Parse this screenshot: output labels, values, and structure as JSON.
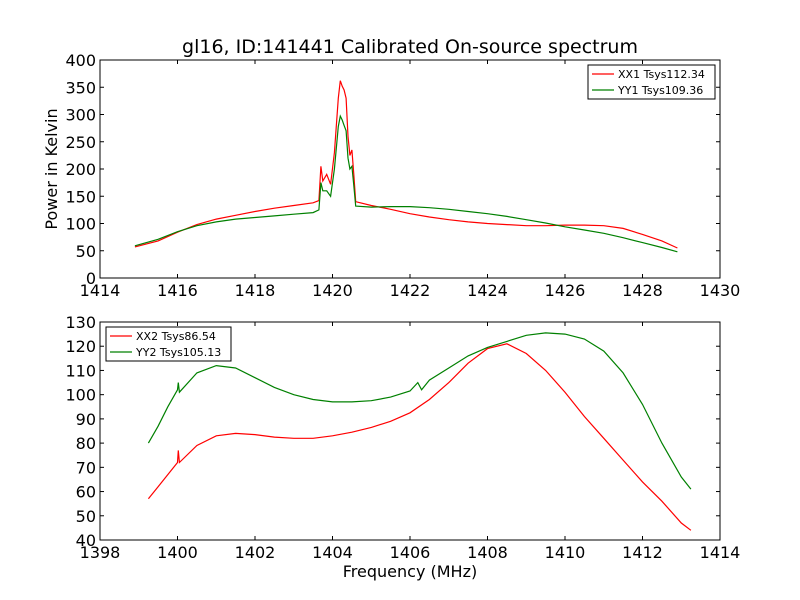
{
  "chart_data": [
    {
      "type": "line",
      "title": "gl16, ID:141441 Calibrated On-source spectrum",
      "xlabel": "",
      "ylabel": "Power in Kelvin",
      "xlim": [
        1414,
        1430
      ],
      "ylim": [
        0,
        400
      ],
      "xticks": [
        1414,
        1416,
        1418,
        1420,
        1422,
        1424,
        1426,
        1428,
        1430
      ],
      "yticks": [
        0,
        50,
        100,
        150,
        200,
        250,
        300,
        350,
        400
      ],
      "legend_position": "top-right",
      "series": [
        {
          "name": "XX1 Tsys112.34",
          "color": "#ff0000",
          "points": [
            [
              1414.9,
              57
            ],
            [
              1415.5,
              68
            ],
            [
              1416,
              84
            ],
            [
              1416.5,
              98
            ],
            [
              1417,
              108
            ],
            [
              1417.5,
              115
            ],
            [
              1418,
              122
            ],
            [
              1418.5,
              128
            ],
            [
              1419,
              133
            ],
            [
              1419.5,
              138
            ],
            [
              1419.65,
              142
            ],
            [
              1419.7,
              205
            ],
            [
              1419.75,
              178
            ],
            [
              1419.85,
              190
            ],
            [
              1419.95,
              172
            ],
            [
              1420.05,
              230
            ],
            [
              1420.15,
              330
            ],
            [
              1420.2,
              362
            ],
            [
              1420.25,
              352
            ],
            [
              1420.3,
              345
            ],
            [
              1420.35,
              330
            ],
            [
              1420.4,
              260
            ],
            [
              1420.45,
              225
            ],
            [
              1420.5,
              235
            ],
            [
              1420.55,
              190
            ],
            [
              1420.6,
              140
            ],
            [
              1421,
              133
            ],
            [
              1421.5,
              126
            ],
            [
              1422,
              118
            ],
            [
              1422.5,
              112
            ],
            [
              1423,
              107
            ],
            [
              1423.5,
              103
            ],
            [
              1424,
              100
            ],
            [
              1424.5,
              98
            ],
            [
              1425,
              96
            ],
            [
              1425.5,
              96
            ],
            [
              1426,
              97
            ],
            [
              1426.5,
              97
            ],
            [
              1427,
              96
            ],
            [
              1427.5,
              91
            ],
            [
              1428,
              80
            ],
            [
              1428.5,
              68
            ],
            [
              1428.9,
              55
            ]
          ]
        },
        {
          "name": "YY1 Tsys109.36",
          "color": "#008000",
          "points": [
            [
              1414.9,
              59
            ],
            [
              1415.5,
              71
            ],
            [
              1416,
              85
            ],
            [
              1416.5,
              96
            ],
            [
              1417,
              103
            ],
            [
              1417.5,
              108
            ],
            [
              1418,
              111
            ],
            [
              1418.5,
              114
            ],
            [
              1419,
              117
            ],
            [
              1419.5,
              120
            ],
            [
              1419.65,
              125
            ],
            [
              1419.7,
              175
            ],
            [
              1419.75,
              160
            ],
            [
              1419.85,
              160
            ],
            [
              1419.95,
              150
            ],
            [
              1420.05,
              200
            ],
            [
              1420.15,
              278
            ],
            [
              1420.2,
              297
            ],
            [
              1420.25,
              290
            ],
            [
              1420.3,
              280
            ],
            [
              1420.35,
              270
            ],
            [
              1420.4,
              220
            ],
            [
              1420.45,
              200
            ],
            [
              1420.5,
              205
            ],
            [
              1420.55,
              170
            ],
            [
              1420.6,
              132
            ],
            [
              1421,
              130
            ],
            [
              1421.5,
              131
            ],
            [
              1422,
              131
            ],
            [
              1422.5,
              129
            ],
            [
              1423,
              126
            ],
            [
              1423.5,
              122
            ],
            [
              1424,
              118
            ],
            [
              1424.5,
              113
            ],
            [
              1425,
              107
            ],
            [
              1425.5,
              101
            ],
            [
              1426,
              94
            ],
            [
              1426.5,
              88
            ],
            [
              1427,
              82
            ],
            [
              1427.5,
              74
            ],
            [
              1428,
              65
            ],
            [
              1428.5,
              56
            ],
            [
              1428.9,
              48
            ]
          ]
        }
      ]
    },
    {
      "type": "line",
      "title": "",
      "xlabel": "Frequency (MHz)",
      "ylabel": "",
      "xlim": [
        1398,
        1414
      ],
      "ylim": [
        40,
        130
      ],
      "xticks": [
        1398,
        1400,
        1402,
        1404,
        1406,
        1408,
        1410,
        1412,
        1414
      ],
      "yticks": [
        40,
        50,
        60,
        70,
        80,
        90,
        100,
        110,
        120,
        130
      ],
      "legend_position": "top-left",
      "series": [
        {
          "name": "XX2 Tsys86.54",
          "color": "#ff0000",
          "points": [
            [
              1399.25,
              57
            ],
            [
              1399.5,
              62
            ],
            [
              1399.75,
              67
            ],
            [
              1400,
              72
            ],
            [
              1400.02,
              77
            ],
            [
              1400.05,
              72
            ],
            [
              1400.5,
              79
            ],
            [
              1401,
              83
            ],
            [
              1401.5,
              84
            ],
            [
              1402,
              83.5
            ],
            [
              1402.5,
              82.5
            ],
            [
              1403,
              82
            ],
            [
              1403.5,
              82
            ],
            [
              1404,
              83
            ],
            [
              1404.5,
              84.5
            ],
            [
              1405,
              86.5
            ],
            [
              1405.5,
              89
            ],
            [
              1406,
              92.5
            ],
            [
              1406.5,
              98
            ],
            [
              1407,
              105
            ],
            [
              1407.5,
              113
            ],
            [
              1408,
              119
            ],
            [
              1408.5,
              121
            ],
            [
              1409,
              117
            ],
            [
              1409.5,
              110
            ],
            [
              1410,
              101
            ],
            [
              1410.5,
              91
            ],
            [
              1411,
              82
            ],
            [
              1411.5,
              73
            ],
            [
              1412,
              64
            ],
            [
              1412.5,
              56
            ],
            [
              1413,
              47
            ],
            [
              1413.25,
              44
            ]
          ]
        },
        {
          "name": "YY2 Tsys105.13",
          "color": "#008000",
          "points": [
            [
              1399.25,
              80
            ],
            [
              1399.5,
              87
            ],
            [
              1399.75,
              95
            ],
            [
              1400,
              102
            ],
            [
              1400.02,
              105
            ],
            [
              1400.05,
              101
            ],
            [
              1400.5,
              109
            ],
            [
              1401,
              112
            ],
            [
              1401.5,
              111
            ],
            [
              1402,
              107
            ],
            [
              1402.5,
              103
            ],
            [
              1403,
              100
            ],
            [
              1403.5,
              98
            ],
            [
              1404,
              97
            ],
            [
              1404.5,
              97
            ],
            [
              1405,
              97.5
            ],
            [
              1405.5,
              99
            ],
            [
              1406,
              101.5
            ],
            [
              1406.2,
              105
            ],
            [
              1406.3,
              102
            ],
            [
              1406.5,
              106
            ],
            [
              1407,
              111
            ],
            [
              1407.5,
              116
            ],
            [
              1408,
              119.5
            ],
            [
              1408.5,
              122
            ],
            [
              1409,
              124.5
            ],
            [
              1409.5,
              125.5
            ],
            [
              1410,
              125
            ],
            [
              1410.5,
              123
            ],
            [
              1411,
              118
            ],
            [
              1411.5,
              109
            ],
            [
              1412,
              96
            ],
            [
              1412.5,
              80
            ],
            [
              1413,
              66
            ],
            [
              1413.25,
              61
            ]
          ]
        }
      ]
    }
  ]
}
